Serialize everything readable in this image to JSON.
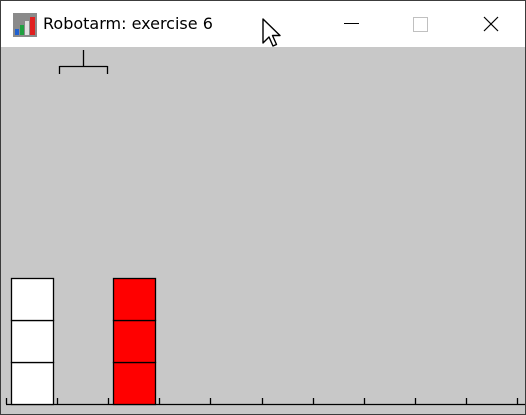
{
  "window": {
    "title": "Robotarm: exercise 6",
    "icon": "robotarm-app-icon",
    "controls": {
      "minimize_icon": "minimize-icon",
      "maximize_icon": "maximize-icon",
      "close_icon": "close-icon"
    }
  },
  "scene": {
    "background_color": "#c8c8c8",
    "floor_positions": 10,
    "arm_position": 1,
    "stacks": [
      {
        "position": 0,
        "blocks": [
          "white",
          "white",
          "white"
        ]
      },
      {
        "position": 1,
        "blocks": []
      },
      {
        "position": 2,
        "blocks": [
          "red",
          "red",
          "red"
        ]
      },
      {
        "position": 3,
        "blocks": []
      },
      {
        "position": 4,
        "blocks": []
      },
      {
        "position": 5,
        "blocks": []
      },
      {
        "position": 6,
        "blocks": []
      },
      {
        "position": 7,
        "blocks": []
      },
      {
        "position": 8,
        "blocks": []
      },
      {
        "position": 9,
        "blocks": []
      }
    ],
    "colors": {
      "white": "#ffffff",
      "red": "#ff0000",
      "outline": "#000000"
    }
  }
}
